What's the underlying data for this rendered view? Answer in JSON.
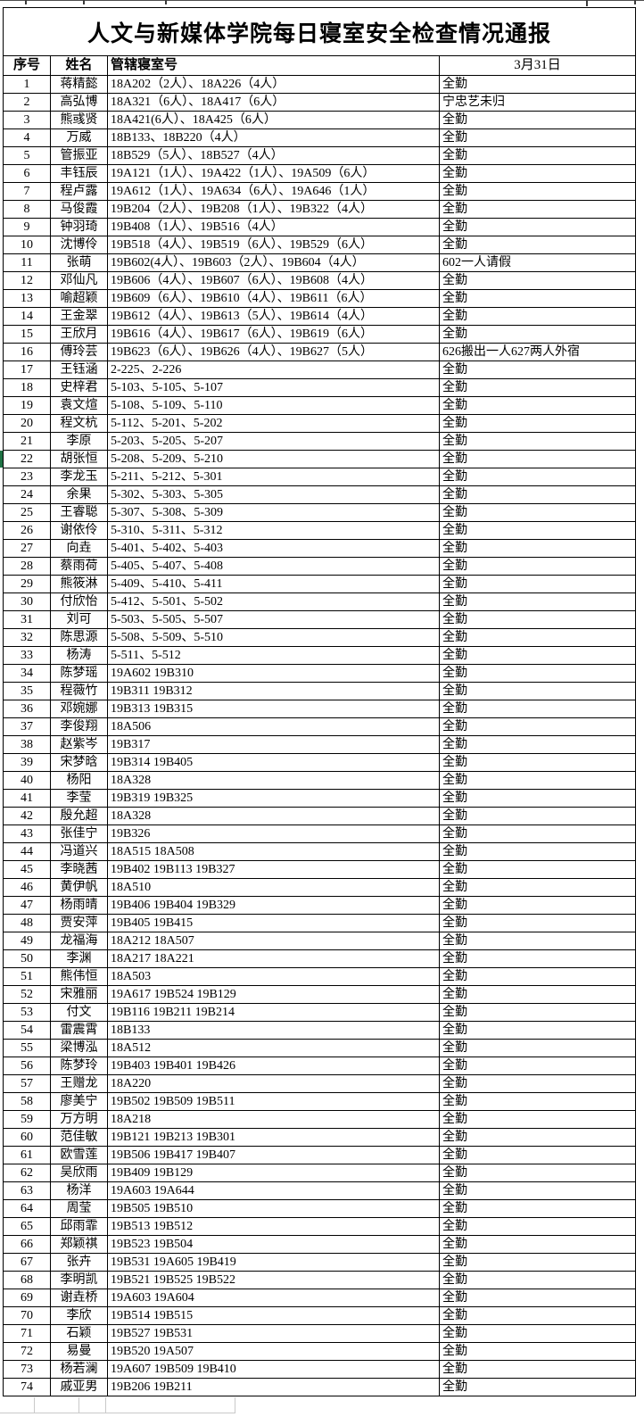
{
  "title": "人文与新媒体学院每日寝室安全检查情况通报",
  "table": {
    "headers": {
      "index": "序号",
      "name": "姓名",
      "rooms": "管辖寝室号",
      "date": "3月31日"
    },
    "rows": [
      {
        "n": "1",
        "name": "蒋精懿",
        "rooms": "18A202（2人）、18A226（4人）",
        "status": "全勤"
      },
      {
        "n": "2",
        "name": "高弘博",
        "rooms": "18A321（6人）、18A417（6人）",
        "status": "宁忠艺未归"
      },
      {
        "n": "3",
        "name": "熊彧贤",
        "rooms": "18A421(6人）、18A425（6人）",
        "status": "全勤"
      },
      {
        "n": "4",
        "name": "万威",
        "rooms": "18B133、18B220（4人）",
        "status": "全勤"
      },
      {
        "n": "5",
        "name": "管振亚",
        "rooms": "18B529（5人）、18B527（4人）",
        "status": "全勤"
      },
      {
        "n": "6",
        "name": "丰钰辰",
        "rooms": "19A121（1人）、19A422（1人）、19A509（6人）",
        "status": "全勤"
      },
      {
        "n": "7",
        "name": "程卢露",
        "rooms": "19A612（1人）、19A634（6人）、19A646（1人）",
        "status": "全勤"
      },
      {
        "n": "8",
        "name": "马俊霞",
        "rooms": "19B204（2人）、19B208（1人）、19B322（4人）",
        "status": "全勤"
      },
      {
        "n": "9",
        "name": "钟羽琦",
        "rooms": "19B408（1人）、19B516（4人）",
        "status": "全勤"
      },
      {
        "n": "10",
        "name": "沈博伶",
        "rooms": "19B518（4人）、19B519（6人）、19B529（6人）",
        "status": "全勤"
      },
      {
        "n": "11",
        "name": "张萌",
        "rooms": "19B602(4人）、19B603（2人）、19B604（4人）",
        "status": "602一人请假"
      },
      {
        "n": "12",
        "name": "邓仙凡",
        "rooms": "19B606（4人）、19B607（6人）、19B608（4人）",
        "status": "全勤"
      },
      {
        "n": "13",
        "name": "喻超颖",
        "rooms": "19B609（6人）、19B610（4人）、19B611（6人）",
        "status": "全勤"
      },
      {
        "n": "14",
        "name": "王金翠",
        "rooms": "19B612（4人）、19B613（5人）、19B614（4人）",
        "status": "全勤"
      },
      {
        "n": "15",
        "name": "王欣月",
        "rooms": "19B616（4人）、19B617（6人）、19B619（6人）",
        "status": "全勤"
      },
      {
        "n": "16",
        "name": "傅玲芸",
        "rooms": "19B623（6人）、19B626（4人）、19B627（5人）",
        "status": "626搬出一人627两人外宿"
      },
      {
        "n": "17",
        "name": "王钰涵",
        "rooms": "2-225、2-226",
        "status": "全勤"
      },
      {
        "n": "18",
        "name": "史梓君",
        "rooms": "5-103、5-105、5-107",
        "status": "全勤"
      },
      {
        "n": "19",
        "name": "袁文煊",
        "rooms": "5-108、5-109、5-110",
        "status": "全勤"
      },
      {
        "n": "20",
        "name": "程文杭",
        "rooms": "5-112、5-201、5-202",
        "status": "全勤"
      },
      {
        "n": "21",
        "name": "李原",
        "rooms": "5-203、5-205、5-207",
        "status": "全勤"
      },
      {
        "n": "22",
        "name": "胡张恒",
        "rooms": "5-208、5-209、5-210",
        "status": "全勤"
      },
      {
        "n": "23",
        "name": "李龙玉",
        "rooms": "5-211、5-212、5-301",
        "status": "全勤"
      },
      {
        "n": "24",
        "name": "余果",
        "rooms": "5-302、5-303、5-305",
        "status": "全勤"
      },
      {
        "n": "25",
        "name": "王睿聪",
        "rooms": "5-307、5-308、5-309",
        "status": "全勤"
      },
      {
        "n": "26",
        "name": "谢依伶",
        "rooms": "5-310、5-311、5-312",
        "status": "全勤"
      },
      {
        "n": "27",
        "name": "向垚",
        "rooms": "5-401、5-402、5-403",
        "status": "全勤"
      },
      {
        "n": "28",
        "name": "蔡雨荷",
        "rooms": "5-405、5-407、5-408",
        "status": "全勤"
      },
      {
        "n": "29",
        "name": "熊筱淋",
        "rooms": "5-409、5-410、5-411",
        "status": "全勤"
      },
      {
        "n": "30",
        "name": "付欣怡",
        "rooms": "5-412、5-501、5-502",
        "status": "全勤"
      },
      {
        "n": "31",
        "name": "刘可",
        "rooms": "5-503、5-505、5-507",
        "status": "全勤"
      },
      {
        "n": "32",
        "name": "陈思源",
        "rooms": "5-508、5-509、5-510",
        "status": "全勤"
      },
      {
        "n": "33",
        "name": "杨涛",
        "rooms": "5-511、5-512",
        "status": "全勤"
      },
      {
        "n": "34",
        "name": "陈梦瑶",
        "rooms": "19A602 19B310",
        "status": "全勤"
      },
      {
        "n": "35",
        "name": "程薇竹",
        "rooms": "19B311 19B312",
        "status": "全勤"
      },
      {
        "n": "36",
        "name": "邓婉娜",
        "rooms": "19B313 19B315",
        "status": "全勤"
      },
      {
        "n": "37",
        "name": "李俊翔",
        "rooms": "18A506",
        "status": "全勤"
      },
      {
        "n": "38",
        "name": "赵紫岑",
        "rooms": "19B317",
        "status": "全勤"
      },
      {
        "n": "39",
        "name": "宋梦晗",
        "rooms": "19B314 19B405",
        "status": "全勤"
      },
      {
        "n": "40",
        "name": "杨阳",
        "rooms": "18A328",
        "status": "全勤"
      },
      {
        "n": "41",
        "name": "李莹",
        "rooms": "19B319 19B325",
        "status": "全勤"
      },
      {
        "n": "42",
        "name": "殷允超",
        "rooms": "18A328",
        "status": "全勤"
      },
      {
        "n": "43",
        "name": "张佳宁",
        "rooms": "19B326",
        "status": "全勤"
      },
      {
        "n": "44",
        "name": "冯道兴",
        "rooms": "18A515 18A508",
        "status": "全勤"
      },
      {
        "n": "45",
        "name": "李晓茜",
        "rooms": "19B402 19B113 19B327",
        "status": "全勤"
      },
      {
        "n": "46",
        "name": "黄伊帆",
        "rooms": "18A510",
        "status": "全勤"
      },
      {
        "n": "47",
        "name": "杨雨晴",
        "rooms": "19B406 19B404 19B329",
        "status": "全勤"
      },
      {
        "n": "48",
        "name": "贾安萍",
        "rooms": "19B405 19B415",
        "status": "全勤"
      },
      {
        "n": "49",
        "name": "龙福海",
        "rooms": "18A212 18A507",
        "status": "全勤"
      },
      {
        "n": "50",
        "name": "李渊",
        "rooms": "18A217 18A221",
        "status": "全勤"
      },
      {
        "n": "51",
        "name": "熊伟恒",
        "rooms": "18A503",
        "status": "全勤"
      },
      {
        "n": "52",
        "name": "宋雅丽",
        "rooms": "19A617 19B524 19B129",
        "status": "全勤"
      },
      {
        "n": "53",
        "name": "付文",
        "rooms": "19B116 19B211 19B214",
        "status": "全勤"
      },
      {
        "n": "54",
        "name": "雷震霄",
        "rooms": "18B133",
        "status": "全勤"
      },
      {
        "n": "55",
        "name": "梁博泓",
        "rooms": "18A512",
        "status": "全勤"
      },
      {
        "n": "56",
        "name": "陈梦玲",
        "rooms": "19B403 19B401 19B426",
        "status": "全勤"
      },
      {
        "n": "57",
        "name": "王赠龙",
        "rooms": "18A220",
        "status": "全勤"
      },
      {
        "n": "58",
        "name": "廖美宁",
        "rooms": "19B502 19B509 19B511",
        "status": "全勤"
      },
      {
        "n": "59",
        "name": "万方明",
        "rooms": "18A218",
        "status": "全勤"
      },
      {
        "n": "60",
        "name": "范佳敏",
        "rooms": "19B121 19B213 19B301",
        "status": "全勤"
      },
      {
        "n": "61",
        "name": "欧雪莲",
        "rooms": "19B506 19B417 19B407",
        "status": "全勤"
      },
      {
        "n": "62",
        "name": "吴欣雨",
        "rooms": "19B409 19B129",
        "status": "全勤"
      },
      {
        "n": "63",
        "name": "杨洋",
        "rooms": "19A603 19A644",
        "status": "全勤"
      },
      {
        "n": "64",
        "name": "周莹",
        "rooms": "19B505 19B510",
        "status": "全勤"
      },
      {
        "n": "65",
        "name": "邱雨霏",
        "rooms": "19B513 19B512",
        "status": "全勤"
      },
      {
        "n": "66",
        "name": "郑颖祺",
        "rooms": "19B523 19B504",
        "status": "全勤"
      },
      {
        "n": "67",
        "name": "张卉",
        "rooms": "19B531 19A605 19B419",
        "status": "全勤"
      },
      {
        "n": "68",
        "name": "李明凯",
        "rooms": "19B521 19B525 19B522",
        "status": "全勤"
      },
      {
        "n": "69",
        "name": "谢垚桥",
        "rooms": "19A603 19A604",
        "status": "全勤"
      },
      {
        "n": "70",
        "name": "李欣",
        "rooms": "19B514 19B515",
        "status": "全勤"
      },
      {
        "n": "71",
        "name": "石颖",
        "rooms": "19B527 19B531",
        "status": "全勤"
      },
      {
        "n": "72",
        "name": "易曼",
        "rooms": "19B520 19A507",
        "status": "全勤"
      },
      {
        "n": "73",
        "name": "杨若澜",
        "rooms": "19A607 19B509 19B410",
        "status": "全勤"
      },
      {
        "n": "74",
        "name": "戚亚男",
        "rooms": "19B206 19B211",
        "status": "全勤"
      }
    ]
  },
  "colors": {
    "table_border": "#000000",
    "faint_grid": "#c9c9c9",
    "row_selection_green": "#1f7244",
    "background": "#ffffff"
  }
}
